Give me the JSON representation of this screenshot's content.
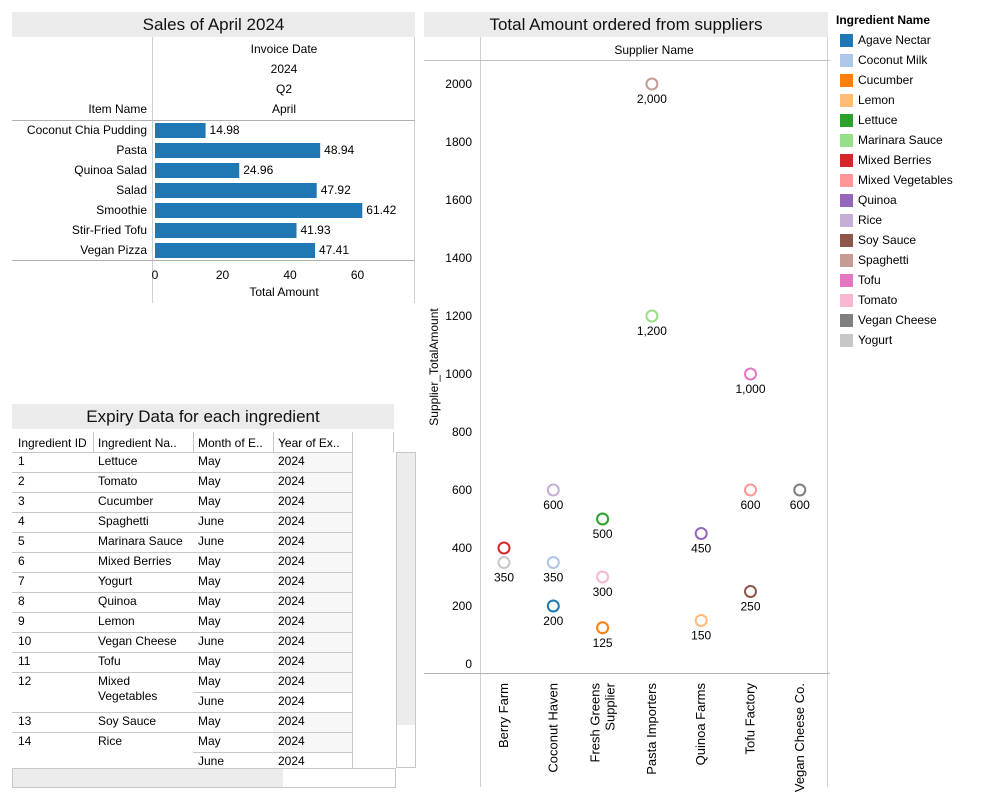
{
  "sales": {
    "title": "Sales of April 2024",
    "header_rows": [
      "Invoice Date",
      "2024",
      "Q2",
      "April"
    ],
    "row_label": "Item Name",
    "xlabel": "Total Amount",
    "ticks": [
      "0",
      "20",
      "40",
      "60"
    ]
  },
  "supplier": {
    "title": "Total Amount ordered from suppliers",
    "column_header": "Supplier Name",
    "ylabel": "Supplier_TotalAmount",
    "yticks": [
      "0",
      "200",
      "400",
      "600",
      "800",
      "1000",
      "1200",
      "1400",
      "1600",
      "1800",
      "2000"
    ],
    "suppliers": [
      "Berry Farm",
      "Coconut Haven",
      "Fresh Greens Supplier",
      "Pasta Importers",
      "Quinoa Farms",
      "Tofu Factory",
      "Vegan Cheese Co."
    ]
  },
  "legend": {
    "title": "Ingredient Name",
    "items": [
      {
        "label": "Agave Nectar",
        "color": "#1f77b4"
      },
      {
        "label": "Coconut Milk",
        "color": "#aec7e8"
      },
      {
        "label": "Cucumber",
        "color": "#ff7f0e"
      },
      {
        "label": "Lemon",
        "color": "#ffbb78"
      },
      {
        "label": "Lettuce",
        "color": "#2ca02c"
      },
      {
        "label": "Marinara Sauce",
        "color": "#98df8a"
      },
      {
        "label": "Mixed Berries",
        "color": "#d62728"
      },
      {
        "label": "Mixed Vegetables",
        "color": "#ff9896"
      },
      {
        "label": "Quinoa",
        "color": "#9467bd"
      },
      {
        "label": "Rice",
        "color": "#c5b0d5"
      },
      {
        "label": "Soy Sauce",
        "color": "#8c564b"
      },
      {
        "label": "Spaghetti",
        "color": "#c49c94"
      },
      {
        "label": "Tofu",
        "color": "#e377c2"
      },
      {
        "label": "Tomato",
        "color": "#f7b6d2"
      },
      {
        "label": "Vegan Cheese",
        "color": "#7f7f7f"
      },
      {
        "label": "Yogurt",
        "color": "#c7c7c7"
      }
    ]
  },
  "expiry": {
    "title": "Expiry Data for each ingredient",
    "headers": [
      "Ingredient ID",
      "Ingredient Na..",
      "Month of E..",
      "Year of Ex.."
    ],
    "rows": [
      {
        "id": "1",
        "name": "Lettuce",
        "months": [
          {
            "month": "May",
            "year": "2024"
          }
        ]
      },
      {
        "id": "2",
        "name": "Tomato",
        "months": [
          {
            "month": "May",
            "year": "2024"
          }
        ]
      },
      {
        "id": "3",
        "name": "Cucumber",
        "months": [
          {
            "month": "May",
            "year": "2024"
          }
        ]
      },
      {
        "id": "4",
        "name": "Spaghetti",
        "months": [
          {
            "month": "June",
            "year": "2024"
          }
        ]
      },
      {
        "id": "5",
        "name": "Marinara Sauce",
        "months": [
          {
            "month": "June",
            "year": "2024"
          }
        ]
      },
      {
        "id": "6",
        "name": "Mixed Berries",
        "months": [
          {
            "month": "May",
            "year": "2024"
          }
        ]
      },
      {
        "id": "7",
        "name": "Yogurt",
        "months": [
          {
            "month": "May",
            "year": "2024"
          }
        ]
      },
      {
        "id": "8",
        "name": "Quinoa",
        "months": [
          {
            "month": "May",
            "year": "2024"
          }
        ]
      },
      {
        "id": "9",
        "name": "Lemon",
        "months": [
          {
            "month": "May",
            "year": "2024"
          }
        ]
      },
      {
        "id": "10",
        "name": "Vegan Cheese",
        "months": [
          {
            "month": "June",
            "year": "2024"
          }
        ]
      },
      {
        "id": "11",
        "name": "Tofu",
        "months": [
          {
            "month": "May",
            "year": "2024"
          }
        ]
      },
      {
        "id": "12",
        "name": "Mixed Vegetables",
        "months": [
          {
            "month": "May",
            "year": "2024"
          },
          {
            "month": "June",
            "year": "2024"
          }
        ]
      },
      {
        "id": "13",
        "name": "Soy Sauce",
        "months": [
          {
            "month": "May",
            "year": "2024"
          }
        ]
      },
      {
        "id": "14",
        "name": "Rice",
        "months": [
          {
            "month": "May",
            "year": "2024"
          },
          {
            "month": "June",
            "year": "2024"
          }
        ]
      }
    ]
  },
  "chart_data": [
    {
      "type": "bar",
      "title": "Sales of April 2024",
      "orientation": "horizontal",
      "categories": [
        "Coconut Chia Pudding",
        "Pasta",
        "Quinoa Salad",
        "Salad",
        "Smoothie",
        "Stir-Fried Tofu",
        "Vegan Pizza"
      ],
      "values": [
        14.98,
        48.94,
        24.96,
        47.92,
        61.42,
        41.93,
        47.41
      ],
      "value_labels": [
        "14.98",
        "48.94",
        "24.96",
        "47.92",
        "61.42",
        "41.93",
        "47.41"
      ],
      "xlabel": "Total Amount",
      "xlim": [
        0,
        75
      ],
      "color": "#1f77b4"
    },
    {
      "type": "scatter",
      "title": "Total Amount ordered from suppliers",
      "xlabel": "Supplier Name",
      "ylabel": "Supplier_TotalAmount",
      "ylim": [
        0,
        2100
      ],
      "points": [
        {
          "supplier": "Berry Farm",
          "ingredient": "Mixed Berries",
          "value": 400,
          "label": ""
        },
        {
          "supplier": "Berry Farm",
          "ingredient": "Yogurt",
          "value": 350,
          "label": "350"
        },
        {
          "supplier": "Coconut Haven",
          "ingredient": "Rice",
          "value": 600,
          "label": "600"
        },
        {
          "supplier": "Coconut Haven",
          "ingredient": "Coconut Milk",
          "value": 350,
          "label": "350"
        },
        {
          "supplier": "Coconut Haven",
          "ingredient": "Agave Nectar",
          "value": 200,
          "label": "200"
        },
        {
          "supplier": "Fresh Greens Supplier",
          "ingredient": "Lettuce",
          "value": 500,
          "label": "500"
        },
        {
          "supplier": "Fresh Greens Supplier",
          "ingredient": "Tomato",
          "value": 300,
          "label": "300"
        },
        {
          "supplier": "Fresh Greens Supplier",
          "ingredient": "Cucumber",
          "value": 125,
          "label": "125"
        },
        {
          "supplier": "Pasta Importers",
          "ingredient": "Spaghetti",
          "value": 2000,
          "label": "2,000"
        },
        {
          "supplier": "Pasta Importers",
          "ingredient": "Marinara Sauce",
          "value": 1200,
          "label": "1,200"
        },
        {
          "supplier": "Quinoa Farms",
          "ingredient": "Quinoa",
          "value": 450,
          "label": "450"
        },
        {
          "supplier": "Quinoa Farms",
          "ingredient": "Lemon",
          "value": 150,
          "label": "150"
        },
        {
          "supplier": "Tofu Factory",
          "ingredient": "Tofu",
          "value": 1000,
          "label": "1,000"
        },
        {
          "supplier": "Tofu Factory",
          "ingredient": "Mixed Vegetables",
          "value": 600,
          "label": "600"
        },
        {
          "supplier": "Tofu Factory",
          "ingredient": "Soy Sauce",
          "value": 250,
          "label": "250"
        },
        {
          "supplier": "Vegan Cheese Co.",
          "ingredient": "Vegan Cheese",
          "value": 600,
          "label": "600"
        }
      ],
      "legend_placement": "right"
    }
  ]
}
